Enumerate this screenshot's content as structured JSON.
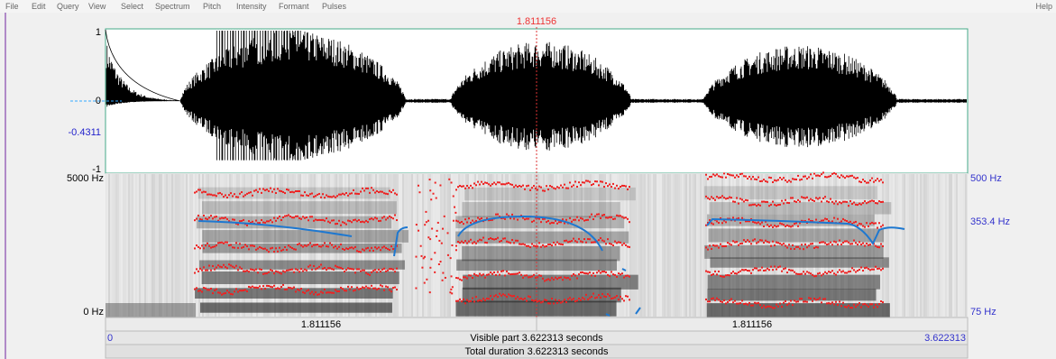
{
  "menu": [
    "File",
    "Edit",
    "Query",
    "View",
    "Select",
    "Spectrum",
    "Pitch",
    "Intensity",
    "Formant",
    "Pulses"
  ],
  "help": "Help",
  "cursor_time": "1.811156",
  "waveform": {
    "y_labels": [
      "1",
      "0",
      "-0.4311",
      "-1"
    ]
  },
  "spectrogram": {
    "left_labels": [
      "5000 Hz",
      "0 Hz"
    ],
    "right_labels": [
      "500 Hz",
      "353.4 Hz",
      "75 Hz"
    ]
  },
  "time_bar": {
    "left_cursor": "1.811156",
    "right_cursor": "1.811156",
    "start": "0",
    "visible": "Visible part 3.622313 seconds",
    "end": "3.622313",
    "total": "Total duration 3.622313 seconds"
  }
}
